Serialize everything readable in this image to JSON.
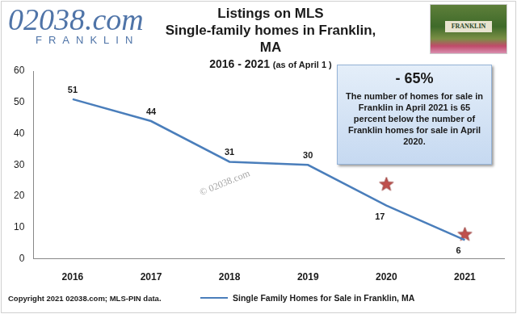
{
  "chart_data": {
    "type": "line",
    "title": [
      "Listings on MLS",
      "Single-family homes in Franklin, MA"
    ],
    "subtitle": "2016 - 2021",
    "subtitle_note": "(as of April 1 )",
    "categories": [
      "2016",
      "2017",
      "2018",
      "2019",
      "2020",
      "2021"
    ],
    "series": [
      {
        "name": "Single Family Homes for Sale in Franklin, MA",
        "color": "#4a7ebb",
        "values": [
          51,
          44,
          31,
          30,
          17,
          6
        ],
        "data_labels": true
      },
      {
        "type": "scatter",
        "marker": "star",
        "color": "#c0504d",
        "values": [
          null,
          null,
          null,
          null,
          24,
          8
        ]
      }
    ],
    "ylim": [
      0,
      60
    ],
    "yticks": [
      0,
      10,
      20,
      30,
      40,
      50,
      60
    ],
    "grid": false,
    "legend": "bottom",
    "annotations": {
      "logo": "02038.com",
      "logo_sub": "FRANKLIN",
      "photo_sign": "FRANKLIN",
      "box_headline": "- 65%",
      "box_text": "The number of homes for sale in Franklin in April 2021 is 65 percent below the number of Franklin homes for sale in April 2020.",
      "watermark": "© 02038.com",
      "footer": "Copyright 2021 02038.com; MLS-PIN data."
    }
  }
}
